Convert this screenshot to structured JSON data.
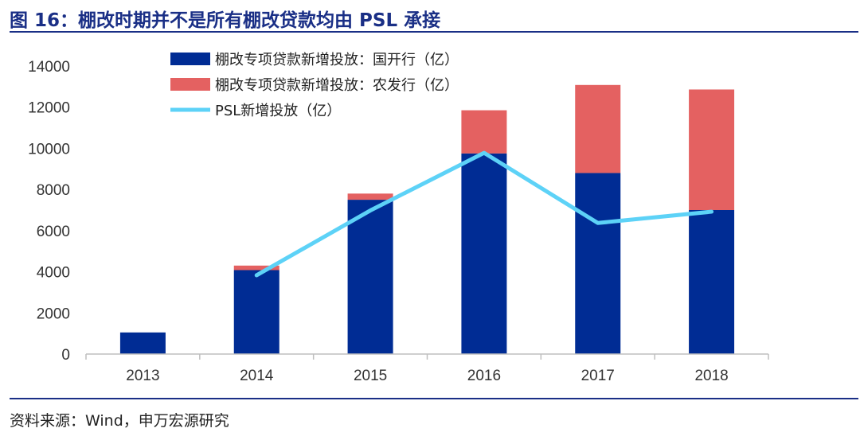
{
  "header": {
    "title": "图 16：棚改时期并不是所有棚改贷款均由 PSL 承接"
  },
  "footer": {
    "source": "资料来源：Wind，申万宏源研究"
  },
  "colors": {
    "cdb": "#002c94",
    "adbc": "#e46161",
    "psl": "#5dd2f7",
    "axis": "#bfbfbf",
    "title": "#1a2f86"
  },
  "chart_data": {
    "type": "bar",
    "stacked": true,
    "title": "",
    "xlabel": "",
    "ylabel": "",
    "ylim": [
      0,
      14000
    ],
    "yticks": [
      0,
      2000,
      4000,
      6000,
      8000,
      10000,
      12000,
      14000
    ],
    "ytick_labels": [
      "0",
      "2000",
      "4000",
      "6000",
      "8000",
      "10000",
      "12000",
      "14000"
    ],
    "categories": [
      "2013",
      "2014",
      "2015",
      "2016",
      "2017",
      "2018"
    ],
    "series": [
      {
        "name": "棚改专项贷款新增投放：国开行（亿）",
        "kind": "bar",
        "color": "#002c94",
        "values": [
          1050,
          4080,
          7500,
          9750,
          8800,
          7000
        ]
      },
      {
        "name": "棚改专项贷款新增投放：农发行（亿）",
        "kind": "bar",
        "color": "#e46161",
        "values": [
          0,
          220,
          300,
          2100,
          4280,
          5860
        ]
      },
      {
        "name": "PSL新增投放（亿）",
        "kind": "line",
        "color": "#5dd2f7",
        "values": [
          null,
          3830,
          6980,
          9780,
          6370,
          6920
        ]
      }
    ],
    "legend_position": "top-left",
    "grid": false
  }
}
